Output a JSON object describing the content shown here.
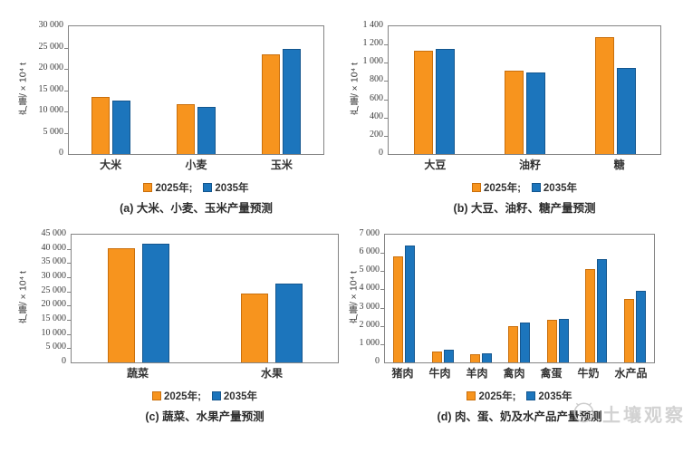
{
  "page": {
    "background": "#ffffff"
  },
  "watermark": {
    "text": "土壤观察",
    "color": "#d2d2d2",
    "logo_icon": "doodle-face-logo"
  },
  "legend": {
    "items": [
      {
        "label": "2025年;",
        "color": "#F7941E",
        "border": "#C96F0C"
      },
      {
        "label": "2035年",
        "color": "#1C75BC",
        "border": "#14568E"
      }
    ]
  },
  "chart_data": [
    {
      "id": "a",
      "type": "bar",
      "title": "(a) 大米、小麦、玉米产量预测",
      "ylabel": "产量/×10⁴ t",
      "ylim": [
        0,
        30000
      ],
      "yticks": [
        0,
        5000,
        10000,
        15000,
        20000,
        25000,
        30000
      ],
      "ytick_labels": [
        "0",
        "5 000",
        "10 000",
        "15 000",
        "20 000",
        "25 000",
        "30 000"
      ],
      "grid": false,
      "legend_position": "bottom",
      "categories": [
        "大米",
        "小麦",
        "玉米"
      ],
      "series": [
        {
          "name": "2025年",
          "color": "#F7941E",
          "border": "#C96F0C",
          "values": [
            13500,
            11700,
            23400
          ]
        },
        {
          "name": "2035年",
          "color": "#1C75BC",
          "border": "#14568E",
          "values": [
            12600,
            11100,
            24700
          ]
        }
      ]
    },
    {
      "id": "b",
      "type": "bar",
      "title": "(b) 大豆、油籽、糖产量预测",
      "ylabel": "产量/×10⁴ t",
      "ylim": [
        0,
        1400
      ],
      "yticks": [
        0,
        200,
        400,
        600,
        800,
        1000,
        1200,
        1400
      ],
      "ytick_labels": [
        "0",
        "200",
        "400",
        "600",
        "800",
        "1 000",
        "1 200",
        "1 400"
      ],
      "grid": false,
      "legend_position": "bottom",
      "categories": [
        "大豆",
        "油籽",
        "糖"
      ],
      "series": [
        {
          "name": "2025年",
          "color": "#F7941E",
          "border": "#C96F0C",
          "values": [
            1130,
            910,
            1280
          ]
        },
        {
          "name": "2035年",
          "color": "#1C75BC",
          "border": "#14568E",
          "values": [
            1150,
            890,
            940
          ]
        }
      ]
    },
    {
      "id": "c",
      "type": "bar",
      "title": "(c) 蔬菜、水果产量预测",
      "ylabel": "产量/×10⁴ t",
      "ylim": [
        0,
        45000
      ],
      "yticks": [
        0,
        5000,
        10000,
        15000,
        20000,
        25000,
        30000,
        35000,
        40000,
        45000
      ],
      "ytick_labels": [
        "0",
        "5 000",
        "10 000",
        "15 000",
        "20 000",
        "25 000",
        "30 000",
        "35 000",
        "40 000",
        "45 000"
      ],
      "grid": false,
      "legend_position": "bottom",
      "categories": [
        "蔬菜",
        "水果"
      ],
      "series": [
        {
          "name": "2025年",
          "color": "#F7941E",
          "border": "#C96F0C",
          "values": [
            40100,
            24200
          ]
        },
        {
          "name": "2035年",
          "color": "#1C75BC",
          "border": "#14568E",
          "values": [
            41800,
            27700
          ]
        }
      ]
    },
    {
      "id": "d",
      "type": "bar",
      "title": "(d) 肉、蛋、奶及水产品产量预测",
      "ylabel": "产量/×10⁴ t",
      "ylim": [
        0,
        7000
      ],
      "yticks": [
        0,
        1000,
        2000,
        3000,
        4000,
        5000,
        6000,
        7000
      ],
      "ytick_labels": [
        "0",
        "1 000",
        "2 000",
        "3 000",
        "4 000",
        "5 000",
        "6 000",
        "7 000"
      ],
      "grid": false,
      "legend_position": "bottom",
      "categories": [
        "猪肉",
        "牛肉",
        "羊肉",
        "禽肉",
        "禽蛋",
        "牛奶",
        "水产品"
      ],
      "series": [
        {
          "name": "2025年",
          "color": "#F7941E",
          "border": "#C96F0C",
          "values": [
            5800,
            620,
            450,
            2000,
            2350,
            5100,
            3500
          ]
        },
        {
          "name": "2035年",
          "color": "#1C75BC",
          "border": "#14568E",
          "values": [
            6400,
            700,
            500,
            2180,
            2380,
            5650,
            3900
          ]
        }
      ]
    }
  ]
}
